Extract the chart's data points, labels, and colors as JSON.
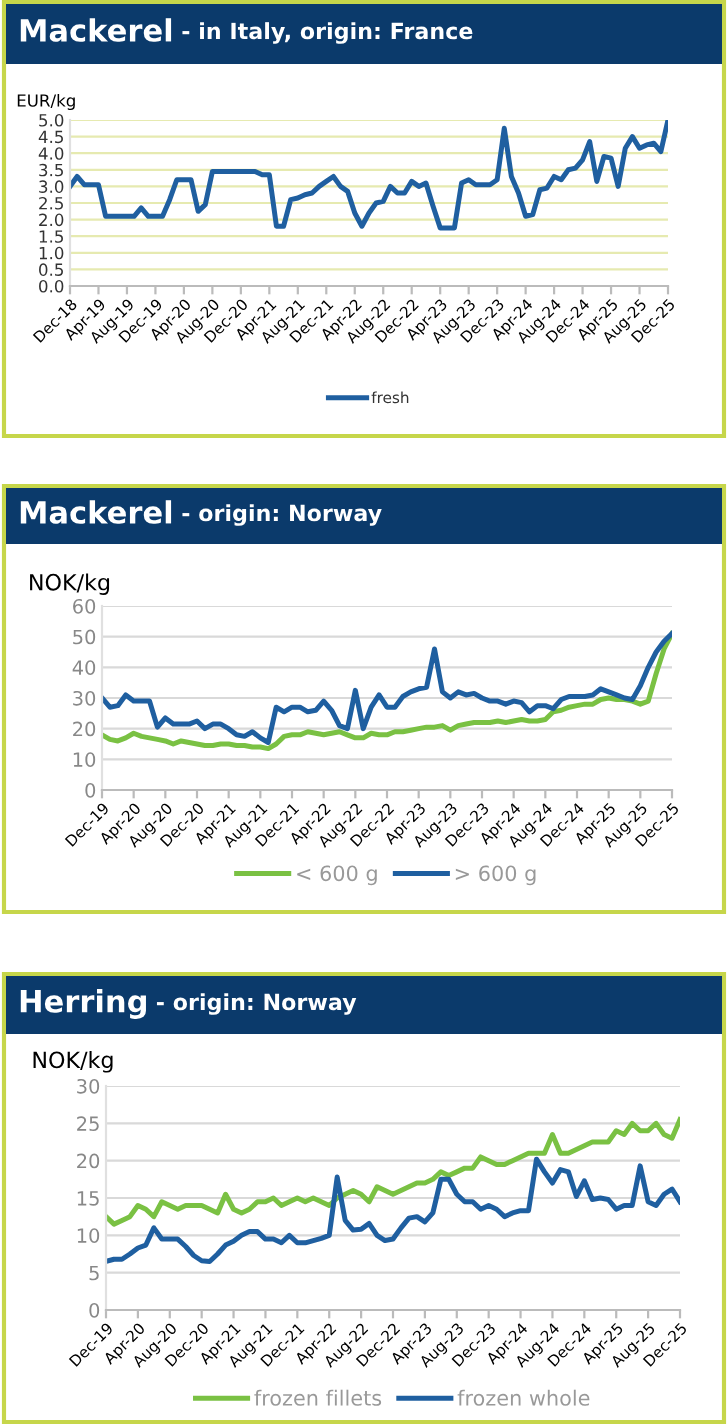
{
  "chart_data": [
    {
      "type": "line",
      "title": "Mackerel",
      "subtitle": "- in Italy, origin: France",
      "ylabel": "EUR/kg",
      "categories": [
        "Dec-18",
        null,
        null,
        null,
        "Apr-19",
        null,
        null,
        null,
        "Aug-19",
        null,
        null,
        null,
        "Dec-19",
        null,
        null,
        null,
        "Apr-20",
        null,
        null,
        null,
        "Aug-20",
        null,
        null,
        null,
        "Dec-20",
        null,
        null,
        null,
        "Apr-21",
        null,
        null,
        null,
        "Aug-21",
        null,
        null,
        null,
        "Dec-21",
        null,
        null,
        null,
        "Apr-22",
        null,
        null,
        null,
        "Aug-22",
        null,
        null,
        null,
        "Dec-22",
        null,
        null,
        null,
        "Apr-23",
        null,
        null,
        null,
        "Aug-23",
        null,
        null,
        null,
        "Dec-23",
        null,
        null,
        null,
        "Apr-24",
        null,
        null,
        null,
        "Aug-24",
        null,
        null,
        null,
        "Dec-24",
        null,
        null,
        null,
        "Apr-25",
        null,
        null,
        null,
        "Aug-25",
        null,
        null,
        null,
        "Dec-25"
      ],
      "series": [
        {
          "name": "fresh",
          "color": "#1f5fa0",
          "values": [
            3.0,
            3.3,
            3.05,
            3.05,
            3.05,
            2.1,
            2.1,
            2.1,
            2.1,
            2.1,
            2.35,
            2.1,
            2.1,
            2.1,
            2.6,
            3.2,
            3.2,
            3.2,
            2.25,
            2.45,
            3.45,
            3.45,
            3.45,
            3.45,
            3.45,
            3.45,
            3.45,
            3.35,
            3.35,
            1.8,
            1.8,
            2.6,
            2.65,
            2.75,
            2.8,
            3.0,
            3.15,
            3.3,
            3.0,
            2.85,
            2.2,
            1.8,
            2.2,
            2.5,
            2.55,
            3.0,
            2.8,
            2.8,
            3.15,
            3.0,
            3.1,
            2.4,
            1.75,
            1.75,
            1.75,
            3.1,
            3.2,
            3.05,
            3.05,
            3.05,
            3.2,
            4.75,
            3.3,
            2.8,
            2.1,
            2.15,
            2.9,
            2.95,
            3.3,
            3.2,
            3.5,
            3.55,
            3.8,
            4.35,
            3.15,
            3.9,
            3.85,
            3.0,
            4.15,
            4.5,
            4.15,
            4.25,
            4.3,
            4.05,
            5.0
          ]
        }
      ],
      "ylim": [
        0,
        5
      ],
      "yticks": [
        {
          "value": 0,
          "label": "0.0"
        },
        {
          "value": 0.5,
          "label": "0.5"
        },
        {
          "value": 1,
          "label": "1.0"
        },
        {
          "value": 1.5,
          "label": "1.5"
        },
        {
          "value": 2,
          "label": "2.0"
        },
        {
          "value": 2.5,
          "label": "2.5"
        },
        {
          "value": 3,
          "label": "3.0"
        },
        {
          "value": 3.5,
          "label": "3.5"
        },
        {
          "value": 4,
          "label": "4.0"
        },
        {
          "value": 4.5,
          "label": "4.5"
        },
        {
          "value": 5,
          "label": "5.0"
        }
      ],
      "grid": "y",
      "legend": "bottom",
      "marker": "none",
      "line_style": "solid"
    },
    {
      "type": "line",
      "title": "Mackerel",
      "subtitle": "- origin: Norway",
      "ylabel": "NOK/kg",
      "categories": [
        "Dec-19",
        null,
        null,
        null,
        "Apr-20",
        null,
        null,
        null,
        "Aug-20",
        null,
        null,
        null,
        "Dec-20",
        null,
        null,
        null,
        "Apr-21",
        null,
        null,
        null,
        "Aug-21",
        null,
        null,
        null,
        "Dec-21",
        null,
        null,
        null,
        "Apr-22",
        null,
        null,
        null,
        "Aug-22",
        null,
        null,
        null,
        "Dec-22",
        null,
        null,
        null,
        "Apr-23",
        null,
        null,
        null,
        "Aug-23",
        null,
        null,
        null,
        "Dec-23",
        null,
        null,
        null,
        "Apr-24",
        null,
        null,
        null,
        "Aug-24",
        null,
        null,
        null,
        "Dec-24",
        null,
        null,
        null,
        "Apr-25",
        null,
        null,
        null,
        "Aug-25",
        null,
        null,
        null,
        "Dec-25"
      ],
      "series": [
        {
          "name": "< 600 g",
          "color": "#7ac143",
          "values": [
            18,
            16.5,
            16,
            17,
            18.5,
            17.5,
            17,
            16.5,
            16,
            15,
            16,
            15.5,
            15,
            14.5,
            14.5,
            15,
            15,
            14.5,
            14.5,
            14,
            14,
            13.5,
            15,
            17.5,
            18,
            18,
            19,
            18.5,
            18,
            18.5,
            19,
            18,
            17,
            17,
            18.5,
            18,
            18,
            19,
            19,
            19.5,
            20,
            20.5,
            20.5,
            21,
            19.5,
            21,
            21.5,
            22,
            22,
            22,
            22.5,
            22,
            22.5,
            23,
            22.5,
            22.5,
            23,
            25.5,
            26,
            27,
            27.5,
            28,
            28,
            29.5,
            30,
            29.5,
            29.5,
            29,
            28,
            29,
            38,
            46,
            51
          ]
        },
        {
          "name": "> 600 g",
          "color": "#1f5fa0",
          "values": [
            30,
            27,
            27.5,
            31,
            29,
            29,
            29,
            20.5,
            23.5,
            21.5,
            21.5,
            21.5,
            22.5,
            20,
            21.5,
            21.5,
            20,
            18,
            17.5,
            19,
            17,
            15.5,
            27,
            25.5,
            27,
            27,
            25.5,
            26,
            29,
            26,
            21,
            20,
            32.5,
            20,
            27,
            31,
            27,
            27,
            30.5,
            32,
            33,
            33.5,
            46,
            32,
            30,
            32,
            31,
            31.5,
            30,
            29,
            29,
            28,
            29,
            28.5,
            25.5,
            27.5,
            27.5,
            26.5,
            29.5,
            30.5,
            30.5,
            30.5,
            31,
            33,
            32,
            31,
            30,
            29.5,
            34,
            40,
            45,
            48.5,
            51
          ]
        }
      ],
      "ylim": [
        0,
        60
      ],
      "yticks": [
        0,
        10,
        20,
        30,
        40,
        50,
        60
      ],
      "grid": "y",
      "legend": "bottom",
      "marker": "none",
      "line_style": "solid"
    },
    {
      "type": "line",
      "title": "Herring",
      "subtitle": "- origin: Norway",
      "ylabel": "NOK/kg",
      "categories": [
        "Dec-19",
        null,
        null,
        null,
        "Apr-20",
        null,
        null,
        null,
        "Aug-20",
        null,
        null,
        null,
        "Dec-20",
        null,
        null,
        null,
        "Apr-21",
        null,
        null,
        null,
        "Aug-21",
        null,
        null,
        null,
        "Dec-21",
        null,
        null,
        null,
        "Apr-22",
        null,
        null,
        null,
        "Aug-22",
        null,
        null,
        null,
        "Dec-22",
        null,
        null,
        null,
        "Apr-23",
        null,
        null,
        null,
        "Aug-23",
        null,
        null,
        null,
        "Dec-23",
        null,
        null,
        null,
        "Apr-24",
        null,
        null,
        null,
        "Aug-24",
        null,
        null,
        null,
        "Dec-24",
        null,
        null,
        null,
        "Apr-25",
        null,
        null,
        null,
        "Aug-25",
        null,
        null,
        null,
        "Dec-25"
      ],
      "series": [
        {
          "name": "frozen fillets",
          "color": "#7ac143",
          "values": [
            12.5,
            11.5,
            12,
            12.5,
            14,
            13.5,
            12.5,
            14.5,
            14,
            13.5,
            14,
            14,
            14,
            13.5,
            13,
            15.5,
            13.5,
            13,
            13.5,
            14.5,
            14.5,
            15,
            14,
            14.5,
            15,
            14.5,
            15,
            14.5,
            14,
            15,
            15.5,
            16,
            15.5,
            14.5,
            16.5,
            16,
            15.5,
            16,
            16.5,
            17,
            17,
            17.5,
            18.5,
            18,
            18.5,
            19,
            19,
            20.5,
            20,
            19.5,
            19.5,
            20,
            20.5,
            21,
            21,
            21,
            23.5,
            21,
            21,
            21.5,
            22,
            22.5,
            22.5,
            22.5,
            24,
            23.5,
            25,
            24,
            24,
            25,
            23.5,
            23,
            25.5
          ]
        },
        {
          "name": "frozen whole",
          "color": "#1f5fa0",
          "values": [
            6.5,
            6.8,
            6.8,
            7.5,
            8.3,
            8.7,
            11,
            9.5,
            9.5,
            9.5,
            8.5,
            7.3,
            6.6,
            6.5,
            7.5,
            8.7,
            9.2,
            10,
            10.5,
            10.5,
            9.5,
            9.5,
            9,
            10,
            9,
            9,
            9.3,
            9.6,
            10,
            17.8,
            12,
            10.7,
            10.8,
            11.6,
            10,
            9.3,
            9.5,
            11,
            12.3,
            12.5,
            11.8,
            13,
            17.5,
            17.5,
            15.5,
            14.5,
            14.5,
            13.5,
            14,
            13.5,
            12.5,
            13,
            13.3,
            13.3,
            20.2,
            18.5,
            17,
            18.8,
            18.5,
            15.2,
            17.3,
            14.8,
            15,
            14.8,
            13.5,
            14,
            14,
            19.3,
            14.5,
            14,
            15.5,
            16.2,
            14.5
          ]
        }
      ],
      "ylim": [
        0,
        30
      ],
      "yticks": [
        0,
        5,
        10,
        15,
        20,
        25,
        30
      ],
      "grid": "y",
      "legend": "bottom",
      "marker": "none",
      "line_style": "solid"
    }
  ]
}
